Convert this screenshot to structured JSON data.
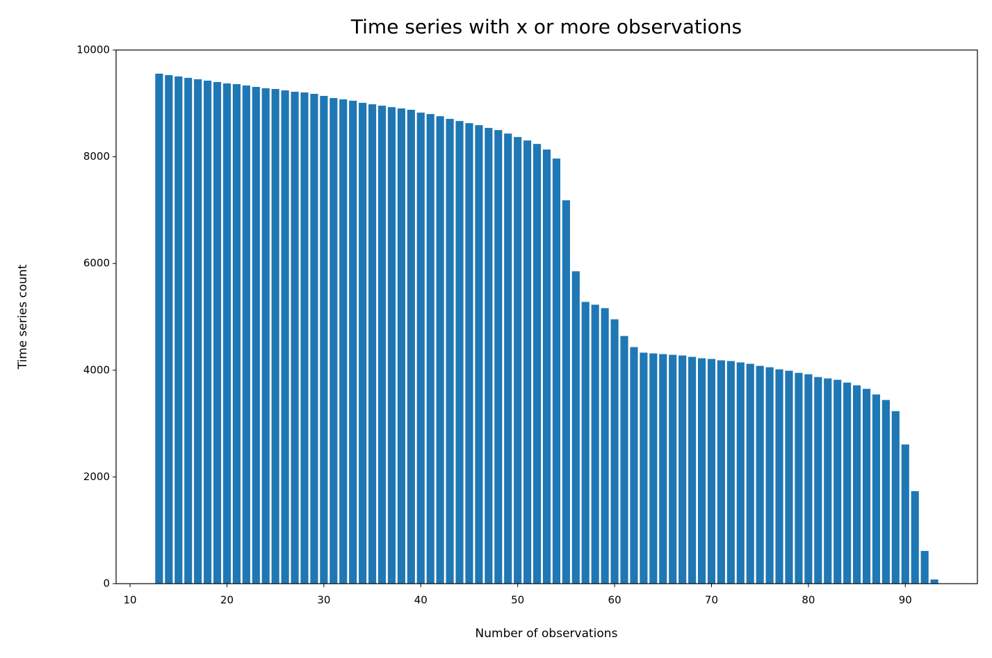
{
  "chart_data": {
    "type": "bar",
    "title": "Time series with x or more observations",
    "xlabel": "Number of observations",
    "ylabel": "Time series count",
    "x": [
      13,
      14,
      15,
      16,
      17,
      18,
      19,
      20,
      21,
      22,
      23,
      24,
      25,
      26,
      27,
      28,
      29,
      30,
      31,
      32,
      33,
      34,
      35,
      36,
      37,
      38,
      39,
      40,
      41,
      42,
      43,
      44,
      45,
      46,
      47,
      48,
      49,
      50,
      51,
      52,
      53,
      54,
      55,
      56,
      57,
      58,
      59,
      60,
      61,
      62,
      63,
      64,
      65,
      66,
      67,
      68,
      69,
      70,
      71,
      72,
      73,
      74,
      75,
      76,
      77,
      78,
      79,
      80,
      81,
      82,
      83,
      84,
      85,
      86,
      87,
      88,
      89,
      90,
      91,
      92,
      93
    ],
    "values": [
      9557,
      9530,
      9505,
      9478,
      9452,
      9426,
      9400,
      9374,
      9361,
      9335,
      9309,
      9283,
      9270,
      9244,
      9218,
      9205,
      9179,
      9140,
      9100,
      9075,
      9050,
      9010,
      8983,
      8957,
      8930,
      8905,
      8880,
      8827,
      8800,
      8760,
      8710,
      8670,
      8630,
      8592,
      8540,
      8500,
      8435,
      8370,
      8305,
      8240,
      8135,
      7966,
      7184,
      5854,
      5280,
      5228,
      5163,
      4954,
      4641,
      4433,
      4329,
      4315,
      4302,
      4289,
      4276,
      4250,
      4224,
      4211,
      4185,
      4172,
      4146,
      4120,
      4081,
      4055,
      4016,
      3990,
      3950,
      3924,
      3872,
      3846,
      3820,
      3768,
      3716,
      3651,
      3546,
      3442,
      3233,
      2608,
      1734,
      613,
      78
    ],
    "color": "#1f77b4",
    "xlim": [
      8.56,
      97.44
    ],
    "xticks": [
      10,
      20,
      30,
      40,
      50,
      60,
      70,
      80,
      90
    ],
    "ylim": [
      0,
      10000
    ],
    "yticks": [
      0,
      2000,
      4000,
      6000,
      8000,
      10000
    ]
  }
}
